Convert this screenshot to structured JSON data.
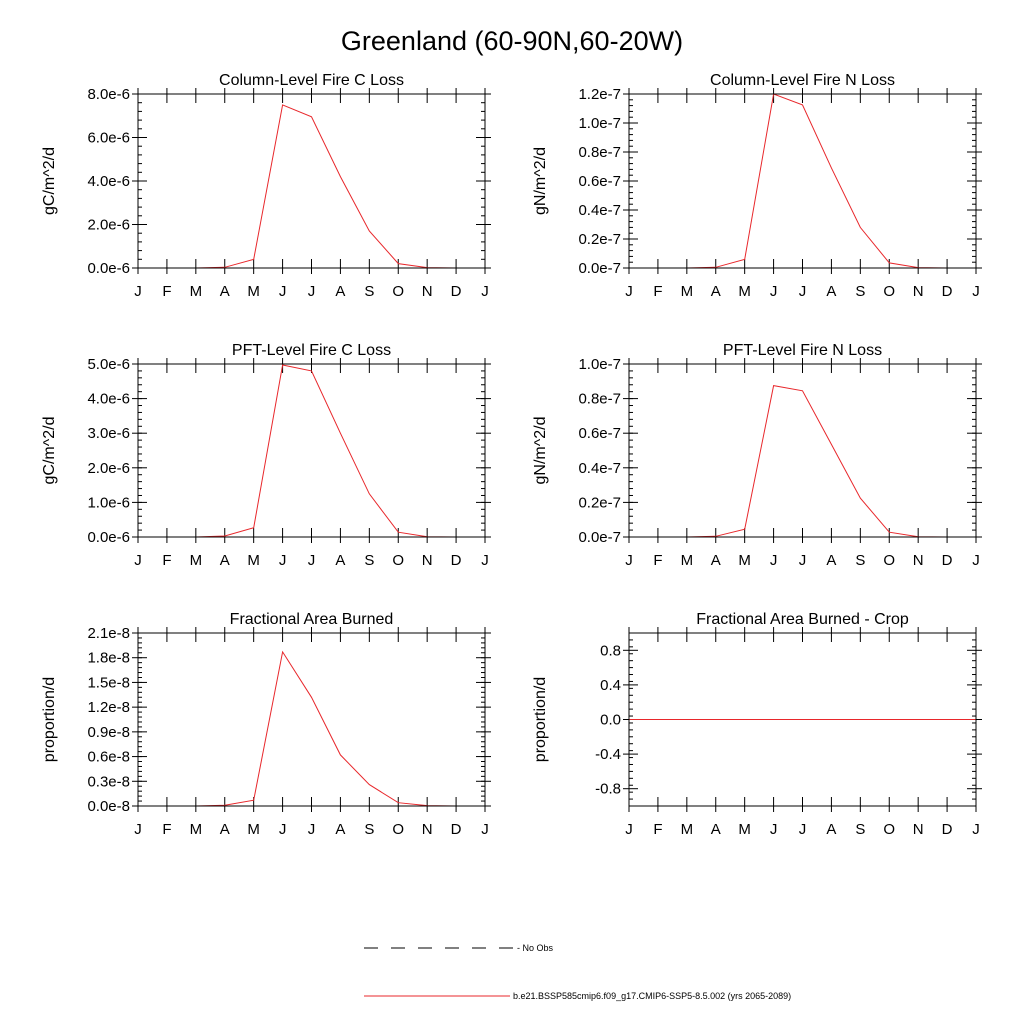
{
  "page": {
    "title": "Greenland (60-90N,60-20W)"
  },
  "chart_data": [
    {
      "type": "line",
      "title": "Column-Level Fire C Loss",
      "ylabel": "gC/m^2/d",
      "xlabel": "",
      "categories": [
        "J",
        "F",
        "M",
        "A",
        "M",
        "J",
        "J",
        "A",
        "S",
        "O",
        "N",
        "D",
        "J"
      ],
      "ylim": [
        0,
        8e-06
      ],
      "yticks": [
        0,
        2e-06,
        4e-06,
        6e-06,
        8e-06
      ],
      "ytick_labels": [
        "0.0e-6",
        "2.0e-6",
        "4.0e-6",
        "6.0e-6",
        "8.0e-6"
      ],
      "series": [
        {
          "values": [
            0,
            0,
            0,
            3e-08,
            4e-07,
            7.5e-06,
            6.95e-06,
            4.2e-06,
            1.7e-06,
            2e-07,
            2e-08,
            0,
            0
          ],
          "color": "#e8272b"
        }
      ]
    },
    {
      "type": "line",
      "title": "Column-Level Fire N Loss",
      "ylabel": "gN/m^2/d",
      "xlabel": "",
      "categories": [
        "J",
        "F",
        "M",
        "A",
        "M",
        "J",
        "J",
        "A",
        "S",
        "O",
        "N",
        "D",
        "J"
      ],
      "ylim": [
        0,
        1.2e-07
      ],
      "yticks": [
        0,
        2e-08,
        4e-08,
        6e-08,
        8e-08,
        1e-07,
        1.2e-07
      ],
      "ytick_labels": [
        "0.0e-7",
        "0.2e-7",
        "0.4e-7",
        "0.6e-7",
        "0.8e-7",
        "1.0e-7",
        "1.2e-7"
      ],
      "series": [
        {
          "values": [
            0,
            0,
            0,
            5e-10,
            6e-09,
            1.2e-07,
            1.125e-07,
            6.9e-08,
            2.8e-08,
            3.5e-09,
            3e-10,
            0,
            0
          ],
          "color": "#e8272b"
        }
      ]
    },
    {
      "type": "line",
      "title": "PFT-Level Fire C Loss",
      "ylabel": "gC/m^2/d",
      "xlabel": "",
      "categories": [
        "J",
        "F",
        "M",
        "A",
        "M",
        "J",
        "J",
        "A",
        "S",
        "O",
        "N",
        "D",
        "J"
      ],
      "ylim": [
        0,
        5e-06
      ],
      "yticks": [
        0,
        1e-06,
        2e-06,
        3e-06,
        4e-06,
        5e-06
      ],
      "ytick_labels": [
        "0.0e-6",
        "1.0e-6",
        "2.0e-6",
        "3.0e-6",
        "4.0e-6",
        "5.0e-6"
      ],
      "series": [
        {
          "values": [
            0,
            0,
            0,
            3e-08,
            2.7e-07,
            4.97e-06,
            4.8e-06,
            3e-06,
            1.25e-06,
            1.4e-07,
            1e-08,
            0,
            0
          ],
          "color": "#e8272b"
        }
      ]
    },
    {
      "type": "line",
      "title": "PFT-Level Fire N Loss",
      "ylabel": "gN/m^2/d",
      "xlabel": "",
      "categories": [
        "J",
        "F",
        "M",
        "A",
        "M",
        "J",
        "J",
        "A",
        "S",
        "O",
        "N",
        "D",
        "J"
      ],
      "ylim": [
        0,
        1e-07
      ],
      "yticks": [
        0,
        2e-08,
        4e-08,
        6e-08,
        8e-08,
        1e-07
      ],
      "ytick_labels": [
        "0.0e-7",
        "0.2e-7",
        "0.4e-7",
        "0.6e-7",
        "0.8e-7",
        "1.0e-7"
      ],
      "series": [
        {
          "values": [
            0,
            0,
            0,
            4e-10,
            4.5e-09,
            8.75e-08,
            8.45e-08,
            5.35e-08,
            2.25e-08,
            2.8e-09,
            2e-10,
            0,
            0
          ],
          "color": "#e8272b"
        }
      ]
    },
    {
      "type": "line",
      "title": "Fractional Area Burned",
      "ylabel": "proportion/d",
      "xlabel": "",
      "categories": [
        "J",
        "F",
        "M",
        "A",
        "M",
        "J",
        "J",
        "A",
        "S",
        "O",
        "N",
        "D",
        "J"
      ],
      "ylim": [
        0,
        2.1e-08
      ],
      "yticks": [
        0,
        3e-09,
        6e-09,
        9e-09,
        1.2e-08,
        1.5e-08,
        1.8e-08,
        2.1e-08
      ],
      "ytick_labels": [
        "0.0e-8",
        "0.3e-8",
        "0.6e-8",
        "0.9e-8",
        "1.2e-8",
        "1.5e-8",
        "1.8e-8",
        "2.1e-8"
      ],
      "series": [
        {
          "values": [
            0,
            0,
            0,
            1e-10,
            7e-10,
            1.87e-08,
            1.32e-08,
            6.2e-09,
            2.6e-09,
            4e-10,
            5e-11,
            0,
            0
          ],
          "color": "#e8272b"
        }
      ]
    },
    {
      "type": "line",
      "title": "Fractional Area Burned - Crop",
      "ylabel": "proportion/d",
      "xlabel": "",
      "categories": [
        "J",
        "F",
        "M",
        "A",
        "M",
        "J",
        "J",
        "A",
        "S",
        "O",
        "N",
        "D",
        "J"
      ],
      "ylim": [
        -1.0,
        1.0
      ],
      "yticks": [
        -0.8,
        -0.4,
        0.0,
        0.4,
        0.8
      ],
      "ytick_labels": [
        "-0.8",
        "-0.4",
        "0.0",
        "0.4",
        "0.8"
      ],
      "series": [
        {
          "values": [
            0,
            0,
            0,
            0,
            0,
            0,
            0,
            0,
            0,
            0,
            0,
            0,
            0
          ],
          "color": "#e8272b"
        }
      ]
    }
  ],
  "legend": {
    "items": [
      {
        "label": "No Obs",
        "style": "dashed",
        "color": "#000000"
      },
      {
        "label": "b.e21.BSSP585cmip6.f09_g17.CMIP6-SSP5-8.5.002 (yrs 2065-2089)",
        "style": "solid",
        "color": "#e8272b"
      }
    ]
  }
}
